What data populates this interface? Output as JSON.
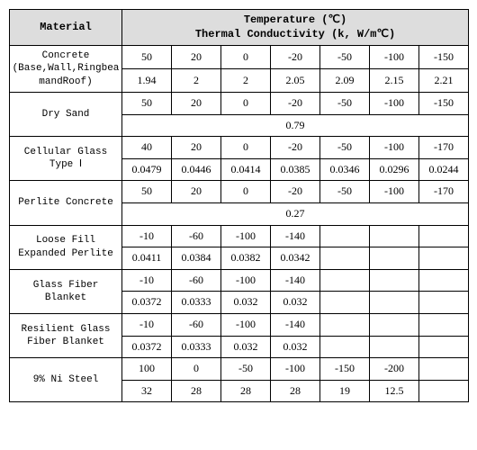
{
  "header": {
    "material": "Material",
    "temp_line": "Temperature (℃)",
    "k_line": "Thermal Conductivity (k, W/m℃)"
  },
  "rows": [
    {
      "name": "Concrete (Base,Wall,RingbeamandRoof)",
      "kind": "pair",
      "t": [
        "50",
        "20",
        "0",
        "-20",
        "-50",
        "-100",
        "-150"
      ],
      "k": [
        "1.94",
        "2",
        "2",
        "2.05",
        "2.09",
        "2.15",
        "2.21"
      ]
    },
    {
      "name": "Dry Sand",
      "kind": "span",
      "t": [
        "50",
        "20",
        "0",
        "-20",
        "-50",
        "-100",
        "-150"
      ],
      "span_k": "0.79"
    },
    {
      "name": "Cellular Glass Type Ⅰ",
      "kind": "pair",
      "t": [
        "40",
        "20",
        "0",
        "-20",
        "-50",
        "-100",
        "-170"
      ],
      "k": [
        "0.0479",
        "0.0446",
        "0.0414",
        "0.0385",
        "0.0346",
        "0.0296",
        "0.0244"
      ]
    },
    {
      "name": "Perlite Concrete",
      "kind": "span",
      "t": [
        "50",
        "20",
        "0",
        "-20",
        "-50",
        "-100",
        "-170"
      ],
      "span_k": "0.27"
    },
    {
      "name": "Loose Fill Expanded Perlite",
      "kind": "pair",
      "t": [
        "-10",
        "-60",
        "-100",
        "-140",
        "",
        "",
        ""
      ],
      "k": [
        "0.0411",
        "0.0384",
        "0.0382",
        "0.0342",
        "",
        "",
        ""
      ]
    },
    {
      "name": "Glass Fiber Blanket",
      "kind": "pair",
      "t": [
        "-10",
        "-60",
        "-100",
        "-140",
        "",
        "",
        ""
      ],
      "k": [
        "0.0372",
        "0.0333",
        "0.032",
        "0.032",
        "",
        "",
        ""
      ]
    },
    {
      "name": "Resilient Glass Fiber Blanket",
      "kind": "pair",
      "t": [
        "-10",
        "-60",
        "-100",
        "-140",
        "",
        "",
        ""
      ],
      "k": [
        "0.0372",
        "0.0333",
        "0.032",
        "0.032",
        "",
        "",
        ""
      ]
    },
    {
      "name": "9% Ni Steel",
      "kind": "pair",
      "t": [
        "100",
        "0",
        "-50",
        "-100",
        "-150",
        "-200",
        ""
      ],
      "k": [
        "32",
        "28",
        "28",
        "28",
        "19",
        "12.5",
        ""
      ]
    }
  ],
  "style": {
    "header_bg": "#dddddd",
    "border_color": "#000000",
    "font_body": "Times New Roman",
    "font_mono": "Courier New",
    "cols": 7
  }
}
